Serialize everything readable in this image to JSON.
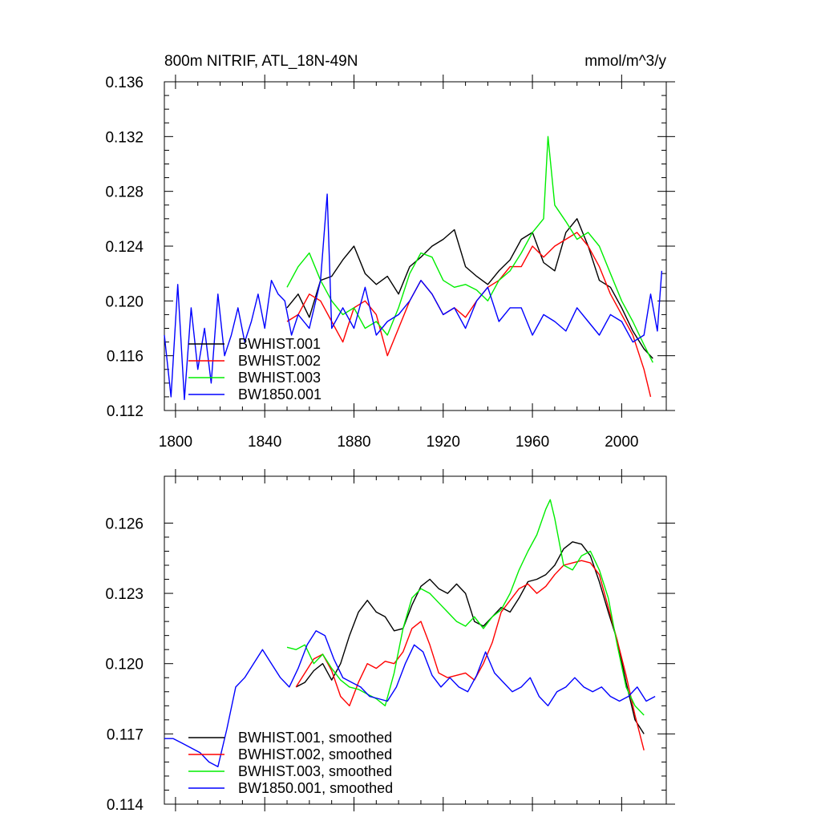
{
  "figure": {
    "title_left": "800m NITRIF, ATL_18N-49N",
    "title_right": "mmol/m^3/y"
  },
  "chart_data": [
    {
      "type": "line",
      "title": "800m NITRIF, ATL_18N-49N",
      "units": "mmol/m^3/y",
      "xlim": [
        1795,
        2020
      ],
      "ylim": [
        0.112,
        0.136
      ],
      "xticks": [
        1800,
        1840,
        1880,
        1920,
        1960,
        2000
      ],
      "xtick_labels": [
        "1800",
        "1840",
        "1880",
        "1920",
        "1960",
        "2000"
      ],
      "yticks": [
        0.112,
        0.116,
        0.12,
        0.124,
        0.128,
        0.132,
        0.136
      ],
      "ytick_labels": [
        "0.112",
        "0.116",
        "0.120",
        "0.124",
        "0.128",
        "0.132",
        "0.136"
      ],
      "legend_location": "lower-left",
      "series": [
        {
          "name": "BWHIST.001",
          "color": "#000000",
          "x": [
            1850,
            1855,
            1860,
            1865,
            1870,
            1875,
            1880,
            1885,
            1890,
            1895,
            1900,
            1905,
            1910,
            1915,
            1920,
            1925,
            1930,
            1935,
            1940,
            1945,
            1950,
            1955,
            1960,
            1965,
            1970,
            1975,
            1980,
            1985,
            1990,
            1995,
            2000,
            2005,
            2010,
            2014
          ],
          "values": [
            0.1195,
            0.1205,
            0.1188,
            0.1215,
            0.1218,
            0.123,
            0.124,
            0.122,
            0.1212,
            0.1218,
            0.1205,
            0.1225,
            0.1232,
            0.124,
            0.1245,
            0.1252,
            0.1225,
            0.1218,
            0.1212,
            0.1222,
            0.123,
            0.1245,
            0.125,
            0.1228,
            0.1222,
            0.125,
            0.126,
            0.124,
            0.1215,
            0.121,
            0.1195,
            0.1178,
            0.1165,
            0.1158
          ]
        },
        {
          "name": "BWHIST.002",
          "color": "#ff0000",
          "x": [
            1850,
            1855,
            1860,
            1865,
            1870,
            1875,
            1880,
            1885,
            1890,
            1895,
            1900,
            1905,
            1910,
            1915,
            1920,
            1925,
            1930,
            1935,
            1940,
            1945,
            1950,
            1955,
            1960,
            1965,
            1970,
            1975,
            1980,
            1985,
            1990,
            1995,
            2000,
            2005,
            2010,
            2013
          ],
          "values": [
            0.1185,
            0.119,
            0.1205,
            0.12,
            0.1185,
            0.117,
            0.1195,
            0.12,
            0.119,
            0.116,
            0.118,
            0.12,
            0.1215,
            0.1205,
            0.119,
            0.1195,
            0.1188,
            0.12,
            0.121,
            0.1215,
            0.1225,
            0.1225,
            0.124,
            0.1232,
            0.124,
            0.1245,
            0.125,
            0.124,
            0.1225,
            0.1205,
            0.119,
            0.1175,
            0.115,
            0.113
          ]
        },
        {
          "name": "BWHIST.003",
          "color": "#00ee00",
          "x": [
            1850,
            1855,
            1860,
            1865,
            1870,
            1875,
            1880,
            1885,
            1890,
            1895,
            1900,
            1905,
            1910,
            1915,
            1920,
            1925,
            1930,
            1935,
            1940,
            1945,
            1950,
            1955,
            1960,
            1965,
            1967,
            1970,
            1975,
            1980,
            1985,
            1990,
            1995,
            2000,
            2005,
            2010,
            2014
          ],
          "values": [
            0.121,
            0.1225,
            0.1235,
            0.1215,
            0.12,
            0.119,
            0.1195,
            0.118,
            0.1185,
            0.1175,
            0.1195,
            0.122,
            0.1235,
            0.1232,
            0.1215,
            0.121,
            0.1212,
            0.1208,
            0.12,
            0.1215,
            0.1222,
            0.1235,
            0.125,
            0.126,
            0.132,
            0.127,
            0.1258,
            0.1245,
            0.125,
            0.124,
            0.122,
            0.12,
            0.1185,
            0.1168,
            0.1155
          ]
        },
        {
          "name": "BW1850.001",
          "color": "#0000ff",
          "x": [
            1795,
            1798,
            1801,
            1804,
            1807,
            1810,
            1813,
            1816,
            1819,
            1822,
            1825,
            1828,
            1831,
            1834,
            1837,
            1840,
            1843,
            1846,
            1849,
            1852,
            1855,
            1860,
            1865,
            1868,
            1870,
            1875,
            1880,
            1885,
            1890,
            1895,
            1900,
            1905,
            1910,
            1915,
            1920,
            1925,
            1930,
            1935,
            1940,
            1945,
            1950,
            1955,
            1960,
            1965,
            1970,
            1975,
            1980,
            1985,
            1990,
            1995,
            2000,
            2005,
            2010,
            2013,
            2016,
            2018
          ],
          "values": [
            0.1175,
            0.113,
            0.1212,
            0.1128,
            0.1195,
            0.115,
            0.118,
            0.114,
            0.1205,
            0.116,
            0.1175,
            0.1195,
            0.117,
            0.1185,
            0.1205,
            0.118,
            0.1215,
            0.1205,
            0.12,
            0.1175,
            0.119,
            0.118,
            0.1215,
            0.1278,
            0.118,
            0.1195,
            0.118,
            0.121,
            0.1175,
            0.1185,
            0.119,
            0.12,
            0.1215,
            0.1205,
            0.119,
            0.1195,
            0.118,
            0.12,
            0.121,
            0.1185,
            0.1195,
            0.1195,
            0.1175,
            0.119,
            0.1185,
            0.1178,
            0.1195,
            0.1185,
            0.1175,
            0.119,
            0.1185,
            0.117,
            0.1175,
            0.1205,
            0.1178,
            0.1222
          ]
        }
      ]
    },
    {
      "type": "line",
      "title": "",
      "xlim": [
        1795,
        2020
      ],
      "ylim": [
        0.114,
        0.128
      ],
      "xticks": [
        1800,
        1840,
        1880,
        1920,
        1960,
        2000
      ],
      "yticks": [
        0.114,
        0.117,
        0.12,
        0.123,
        0.126
      ],
      "ytick_labels": [
        "0.114",
        "0.117",
        "0.120",
        "0.123",
        "0.126"
      ],
      "legend_location": "lower-left",
      "series": [
        {
          "name": "BWHIST.001, smoothed",
          "color": "#000000",
          "x": [
            1854,
            1858,
            1862,
            1866,
            1870,
            1874,
            1878,
            1882,
            1886,
            1890,
            1894,
            1898,
            1902,
            1906,
            1910,
            1914,
            1918,
            1922,
            1926,
            1930,
            1934,
            1938,
            1942,
            1946,
            1950,
            1954,
            1958,
            1962,
            1966,
            1970,
            1974,
            1978,
            1982,
            1986,
            1990,
            1994,
            1998,
            2002,
            2006,
            2010
          ],
          "values": [
            0.119,
            0.1192,
            0.1197,
            0.12,
            0.1193,
            0.12,
            0.1212,
            0.1222,
            0.1227,
            0.1222,
            0.122,
            0.1214,
            0.1215,
            0.1225,
            0.1233,
            0.1236,
            0.1232,
            0.123,
            0.1234,
            0.123,
            0.1218,
            0.1216,
            0.122,
            0.1224,
            0.1222,
            0.1228,
            0.1235,
            0.1236,
            0.1238,
            0.1242,
            0.1249,
            0.1252,
            0.1251,
            0.1246,
            0.1235,
            0.1222,
            0.121,
            0.1192,
            0.1176,
            0.117
          ]
        },
        {
          "name": "BWHIST.002, smoothed",
          "color": "#ff0000",
          "x": [
            1854,
            1858,
            1862,
            1866,
            1870,
            1874,
            1878,
            1882,
            1886,
            1890,
            1894,
            1898,
            1902,
            1906,
            1910,
            1914,
            1918,
            1922,
            1926,
            1930,
            1934,
            1938,
            1942,
            1946,
            1950,
            1954,
            1958,
            1962,
            1966,
            1970,
            1974,
            1978,
            1982,
            1986,
            1990,
            1994,
            1998,
            2002,
            2006,
            2010
          ],
          "values": [
            0.119,
            0.1196,
            0.1202,
            0.1204,
            0.1197,
            0.1186,
            0.1182,
            0.1192,
            0.12,
            0.1198,
            0.1201,
            0.12,
            0.1205,
            0.1215,
            0.1218,
            0.1208,
            0.1196,
            0.1194,
            0.1195,
            0.1196,
            0.1193,
            0.12,
            0.1209,
            0.1222,
            0.1227,
            0.1232,
            0.1234,
            0.123,
            0.1233,
            0.1238,
            0.1242,
            0.1243,
            0.1244,
            0.1243,
            0.1238,
            0.1224,
            0.121,
            0.1195,
            0.1178,
            0.1163
          ]
        },
        {
          "name": "BWHIST.003, smoothed",
          "color": "#00ee00",
          "x": [
            1850,
            1854,
            1858,
            1862,
            1866,
            1870,
            1874,
            1878,
            1882,
            1886,
            1890,
            1894,
            1898,
            1902,
            1906,
            1910,
            1914,
            1918,
            1922,
            1926,
            1930,
            1934,
            1938,
            1942,
            1946,
            1950,
            1954,
            1958,
            1962,
            1966,
            1968,
            1970,
            1974,
            1978,
            1982,
            1986,
            1990,
            1994,
            1998,
            2002,
            2006,
            2010
          ],
          "values": [
            0.1207,
            0.1206,
            0.1208,
            0.12,
            0.1204,
            0.1198,
            0.1193,
            0.119,
            0.1189,
            0.1187,
            0.1185,
            0.1182,
            0.1196,
            0.1215,
            0.1228,
            0.1232,
            0.123,
            0.1226,
            0.1222,
            0.1218,
            0.1216,
            0.122,
            0.1215,
            0.122,
            0.1223,
            0.123,
            0.124,
            0.1248,
            0.1255,
            0.1266,
            0.127,
            0.1262,
            0.1242,
            0.124,
            0.1246,
            0.1248,
            0.124,
            0.1228,
            0.1208,
            0.119,
            0.1182,
            0.1178
          ]
        },
        {
          "name": "BW1850.001, smoothed",
          "color": "#0000ff",
          "x": [
            1795,
            1799,
            1803,
            1807,
            1811,
            1815,
            1819,
            1823,
            1827,
            1831,
            1835,
            1839,
            1843,
            1847,
            1851,
            1855,
            1859,
            1863,
            1867,
            1871,
            1875,
            1879,
            1883,
            1887,
            1891,
            1895,
            1899,
            1903,
            1907,
            1911,
            1915,
            1919,
            1923,
            1927,
            1931,
            1935,
            1939,
            1943,
            1947,
            1951,
            1955,
            1959,
            1963,
            1967,
            1971,
            1975,
            1979,
            1983,
            1987,
            1991,
            1995,
            1999,
            2003,
            2007,
            2011,
            2015
          ],
          "values": [
            0.1168,
            0.1168,
            0.1166,
            0.1164,
            0.1162,
            0.1158,
            0.1156,
            0.1172,
            0.119,
            0.1194,
            0.12,
            0.1206,
            0.12,
            0.1194,
            0.119,
            0.1198,
            0.1208,
            0.1214,
            0.1212,
            0.1202,
            0.1194,
            0.1192,
            0.119,
            0.1186,
            0.1185,
            0.1184,
            0.119,
            0.12,
            0.1208,
            0.1205,
            0.1195,
            0.119,
            0.1194,
            0.119,
            0.1188,
            0.1195,
            0.1205,
            0.1196,
            0.1192,
            0.1188,
            0.119,
            0.1194,
            0.1186,
            0.1182,
            0.1188,
            0.119,
            0.1194,
            0.119,
            0.1188,
            0.119,
            0.1186,
            0.1184,
            0.1186,
            0.119,
            0.1184,
            0.1186
          ]
        }
      ]
    }
  ]
}
